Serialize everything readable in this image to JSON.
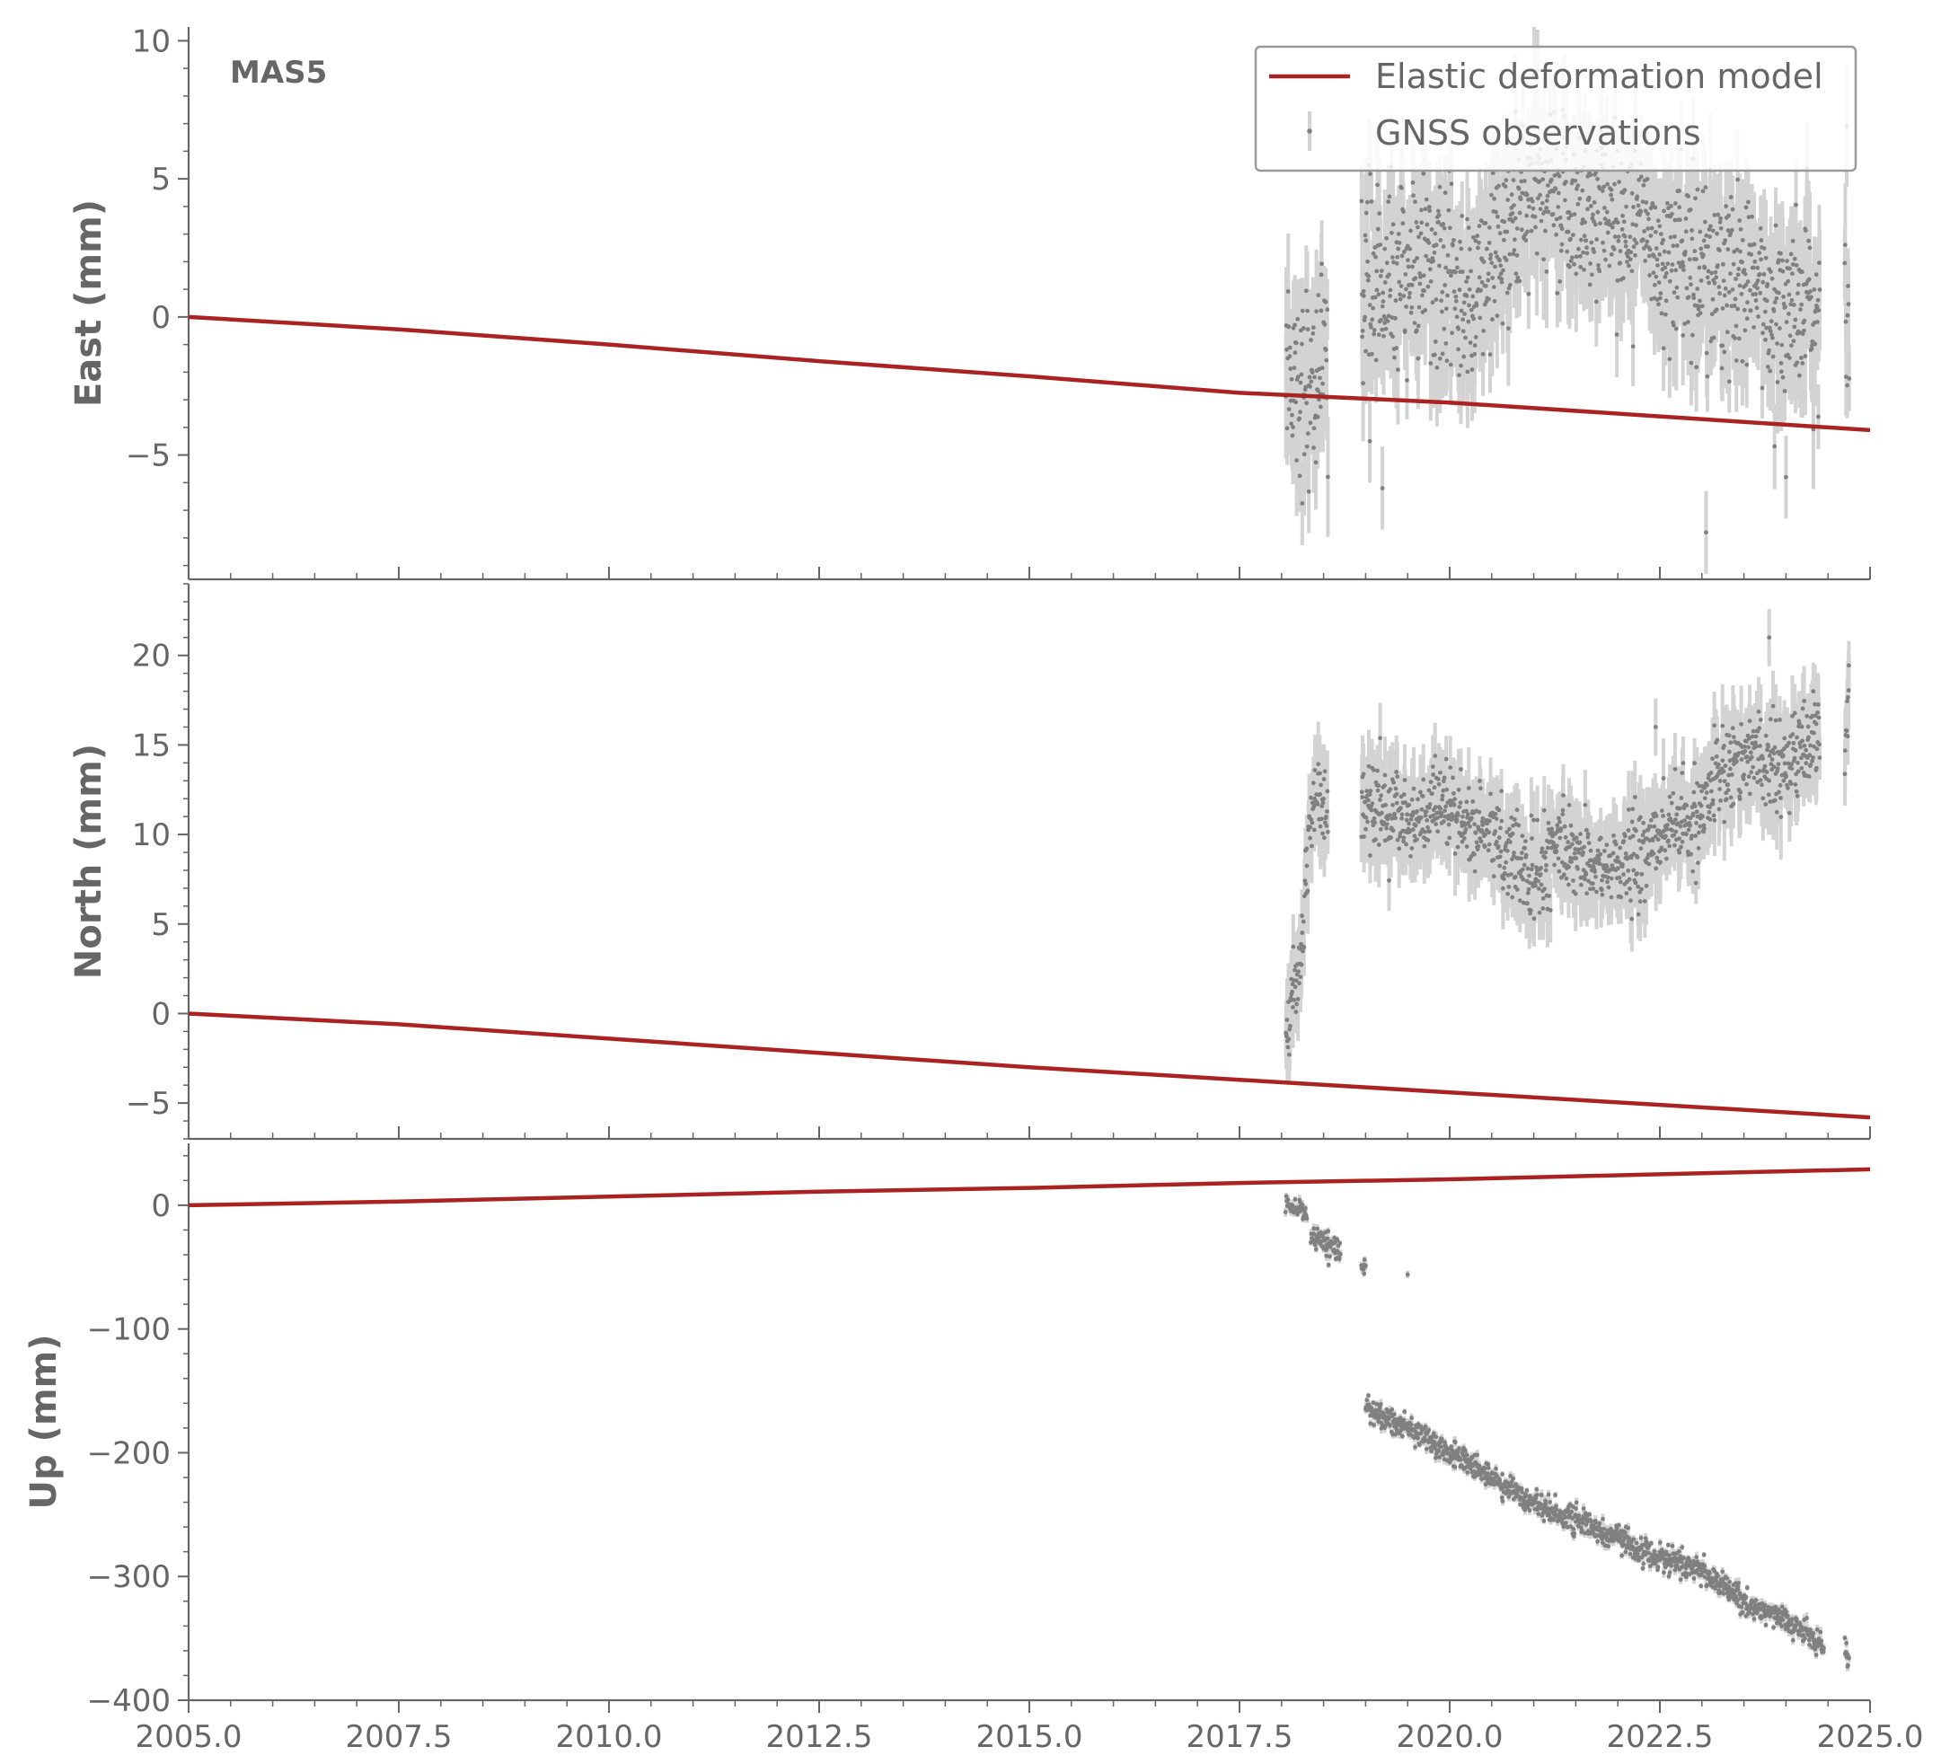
{
  "chart_data": {
    "type": "scatter",
    "station_label": "MAS5",
    "x_ticks": [
      "2005.0",
      "2007.5",
      "2010.0",
      "2012.5",
      "2015.0",
      "2017.5",
      "2020.0",
      "2022.5",
      "2025.0"
    ],
    "x_tick_values": [
      2005.0,
      2007.5,
      2010.0,
      2012.5,
      2015.0,
      2017.5,
      2020.0,
      2022.5,
      2025.0
    ],
    "xlim": [
      2005.0,
      2025.0
    ],
    "legend": {
      "placement": "top-right of first panel",
      "entries": [
        {
          "label": "Elastic deformation model",
          "color": "#aa2222",
          "style": "line"
        },
        {
          "label": "GNSS observations",
          "color": "#808080",
          "style": "point-with-errorbar"
        }
      ]
    },
    "colors": {
      "model": "#aa2222",
      "obs": "#808080",
      "errorbar": "#d3d3d3",
      "axis": "#666666"
    },
    "panels": [
      {
        "ylabel": "East (mm)",
        "ylim": [
          -9.5,
          10.5
        ],
        "y_ticks": [
          "10",
          "5",
          "0",
          "−5"
        ],
        "y_tick_values": [
          10,
          5,
          0,
          -5
        ],
        "model": {
          "x": [
            2005.0,
            2007.5,
            2010.0,
            2012.5,
            2015.0,
            2017.5,
            2020.0,
            2022.5,
            2025.0
          ],
          "y": [
            0.0,
            -0.45,
            -1.0,
            -1.6,
            -2.15,
            -2.75,
            -3.1,
            -3.6,
            -4.1
          ]
        },
        "observations": {
          "sigma": 1.5,
          "segments": [
            {
              "x": [
                2018.05,
                2018.2,
                2018.35,
                2018.55
              ],
              "y": [
                -1.0,
                -2.5,
                -2.2,
                -1.8
              ],
              "scatter": 1.8
            },
            {
              "x": [
                2018.95,
                2019.3,
                2019.7,
                2020.0,
                2020.3,
                2020.6,
                2021.0,
                2021.5,
                2022.0,
                2022.5,
                2023.0,
                2023.5,
                2024.0,
                2024.4
              ],
              "y": [
                1.5,
                1.2,
                2.0,
                1.0,
                0.5,
                2.5,
                4.5,
                4.0,
                3.8,
                2.5,
                2.0,
                1.0,
                0.5,
                0.0
              ],
              "scatter": 1.6
            },
            {
              "x": [
                2024.7,
                2024.75
              ],
              "y": [
                0.0,
                0.5
              ],
              "scatter": 2.0
            }
          ],
          "outliers": [
            {
              "x": 2019.2,
              "y": -6.2
            },
            {
              "x": 2023.05,
              "y": -7.8
            },
            {
              "x": 2024.0,
              "y": -5.8
            },
            {
              "x": 2019.05,
              "y": -4.5
            }
          ]
        }
      },
      {
        "ylabel": "North (mm)",
        "ylim": [
          -7,
          24
        ],
        "y_ticks": [
          "20",
          "15",
          "10",
          "5",
          "0",
          "−5"
        ],
        "y_tick_values": [
          20,
          15,
          10,
          5,
          0,
          -5
        ],
        "model": {
          "x": [
            2005.0,
            2007.5,
            2010.0,
            2012.5,
            2015.0,
            2017.5,
            2020.0,
            2022.5,
            2025.0
          ],
          "y": [
            0.0,
            -0.6,
            -1.4,
            -2.2,
            -3.0,
            -3.7,
            -4.4,
            -5.1,
            -5.8
          ]
        },
        "observations": {
          "sigma": 1.6,
          "segments": [
            {
              "x": [
                2018.05,
                2018.15,
                2018.25,
                2018.3,
                2018.4,
                2018.55
              ],
              "y": [
                -1.0,
                1.5,
                4.0,
                9.0,
                12.5,
                11.0
              ],
              "scatter": 1.0
            },
            {
              "x": [
                2018.95,
                2019.5,
                2020.0,
                2020.5,
                2021.0,
                2021.3,
                2021.8,
                2022.2,
                2022.6,
                2023.0,
                2023.2,
                2023.6,
                2024.0,
                2024.4
              ],
              "y": [
                11.5,
                11.0,
                11.2,
                10.0,
                7.5,
                9.5,
                8.0,
                8.5,
                10.5,
                10.5,
                14.0,
                14.5,
                14.0,
                15.5
              ],
              "scatter": 1.2
            },
            {
              "x": [
                2024.7,
                2024.75
              ],
              "y": [
                15.0,
                17.0
              ],
              "scatter": 2.0
            }
          ],
          "outliers": [
            {
              "x": 2023.8,
              "y": 21.0
            },
            {
              "x": 2022.45,
              "y": 16.0
            }
          ]
        }
      },
      {
        "ylabel": "Up (mm)",
        "ylim": [
          -400,
          50
        ],
        "y_ticks": [
          "0",
          "−100",
          "−200",
          "−300",
          "−400"
        ],
        "y_tick_values": [
          0,
          -100,
          -200,
          -300,
          -400
        ],
        "model": {
          "x": [
            2005.0,
            2007.5,
            2010.0,
            2012.5,
            2015.0,
            2017.5,
            2020.0,
            2022.5,
            2025.0
          ],
          "y": [
            0,
            3,
            7,
            11,
            14,
            18,
            21,
            25,
            29
          ]
        },
        "observations": {
          "sigma": 3,
          "segments": [
            {
              "x": [
                2018.05,
                2018.3
              ],
              "y": [
                0,
                -8
              ],
              "scatter": 4
            },
            {
              "x": [
                2018.35,
                2018.7
              ],
              "y": [
                -25,
                -38
              ],
              "scatter": 5
            },
            {
              "x": [
                2018.95,
                2019.0
              ],
              "y": [
                -50,
                -54
              ],
              "scatter": 4
            },
            {
              "x": [
                2019.0,
                2019.5,
                2020.0,
                2020.5,
                2021.0,
                2021.5,
                2022.0,
                2022.5,
                2023.0,
                2023.5,
                2024.0,
                2024.45
              ],
              "y": [
                -163,
                -180,
                -200,
                -220,
                -240,
                -255,
                -270,
                -285,
                -295,
                -320,
                -335,
                -355
              ],
              "scatter": 5
            },
            {
              "x": [
                2024.7,
                2024.75
              ],
              "y": [
                -360,
                -368
              ],
              "scatter": 6
            }
          ],
          "outliers": [
            {
              "x": 2019.5,
              "y": -56
            }
          ]
        }
      }
    ]
  }
}
